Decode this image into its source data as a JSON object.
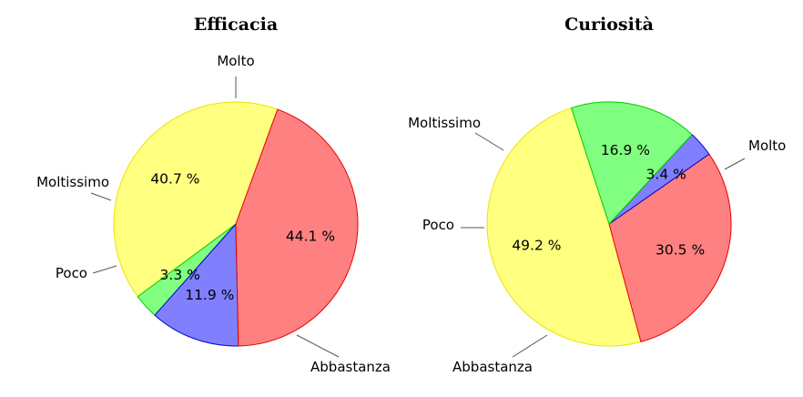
{
  "chart_data": [
    {
      "type": "pie",
      "title": "Efficacia",
      "slices": [
        {
          "label": "Molto",
          "value": 40.7,
          "value_text": "40.7 %",
          "color": "#ffff80",
          "edge": "#e6e600"
        },
        {
          "label": "Moltissimo",
          "value": 3.3,
          "value_text": "3.3 %",
          "color": "#80ff80",
          "edge": "#00cc00"
        },
        {
          "label": "Poco",
          "value": 11.9,
          "value_text": "11.9 %",
          "color": "#8080ff",
          "edge": "#0000cc"
        },
        {
          "label": "Abbastanza",
          "value": 44.1,
          "value_text": "44.1 %",
          "color": "#ff8080",
          "edge": "#e60000"
        }
      ]
    },
    {
      "type": "pie",
      "title": "Curiosità",
      "slices": [
        {
          "label": "Molto",
          "value": 49.2,
          "value_text": "49.2 %",
          "color": "#ffff80",
          "edge": "#e6e600"
        },
        {
          "label": "Abbastanza",
          "value": 30.5,
          "value_text": "30.5 %",
          "color": "#ff8080",
          "edge": "#e60000"
        },
        {
          "label": "Poco",
          "value": 3.4,
          "value_text": "3.4 %",
          "color": "#8080ff",
          "edge": "#0000cc"
        },
        {
          "label": "Moltissimo",
          "value": 16.9,
          "value_text": "16.9 %",
          "color": "#80ff80",
          "edge": "#00cc00"
        }
      ]
    }
  ]
}
